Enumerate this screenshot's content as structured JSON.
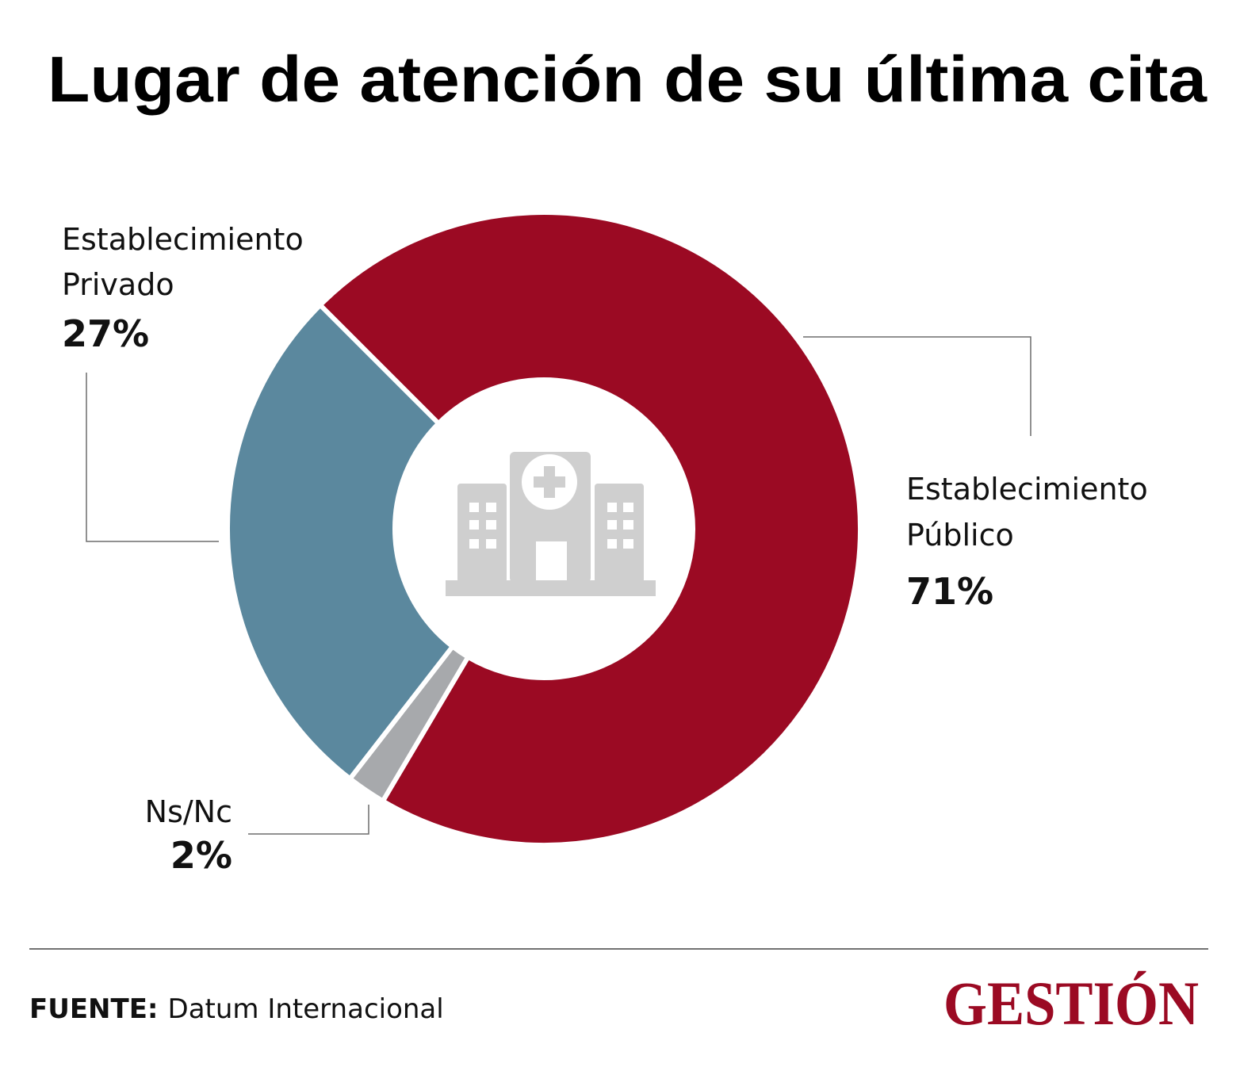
{
  "chart_data": {
    "type": "pie",
    "variant": "donut",
    "title": "Lugar de atención de su última cita",
    "slices": [
      {
        "label_line1": "Establecimiento",
        "label_line2": "Público",
        "value": 71,
        "value_label": "71%",
        "color": "#9b0a23"
      },
      {
        "label_line1": "Ns/Nc",
        "label_line2": "",
        "value": 2,
        "value_label": "2%",
        "color": "#a7a9ac"
      },
      {
        "label_line1": "Establecimiento",
        "label_line2": "Privado",
        "value": 27,
        "value_label": "27%",
        "color": "#5b889e"
      }
    ],
    "center_icon": "hospital-icon",
    "legend": "none"
  },
  "footer": {
    "source_label": "FUENTE:",
    "source_value": "Datum Internacional",
    "logo_text": "GESTIÓN",
    "logo_color": "#9b0a23"
  }
}
